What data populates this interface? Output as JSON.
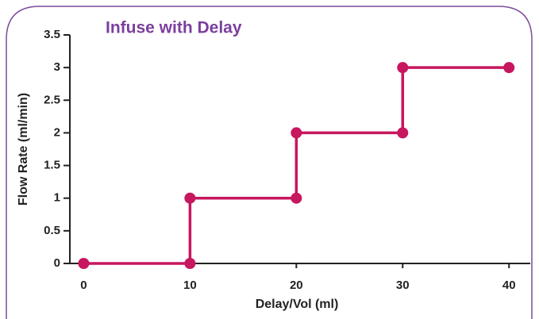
{
  "chart_data": {
    "type": "line",
    "title": "Infuse with Delay",
    "x_label": "Delay/Vol (ml)",
    "y_label": "Flow Rate (ml/min)",
    "x": [
      0,
      10,
      10,
      20,
      20,
      30,
      30,
      40
    ],
    "values": [
      0,
      0,
      1,
      1,
      2,
      2,
      3,
      3
    ],
    "color": "#c7175e",
    "xlim": [
      -1.3,
      42
    ],
    "xticks": [
      0,
      10,
      20,
      30,
      40
    ],
    "ylim": [
      0,
      3.5
    ],
    "yticks": [
      0,
      0.5,
      1,
      1.5,
      2,
      2.5,
      3,
      3.5
    ],
    "grid": false
  }
}
